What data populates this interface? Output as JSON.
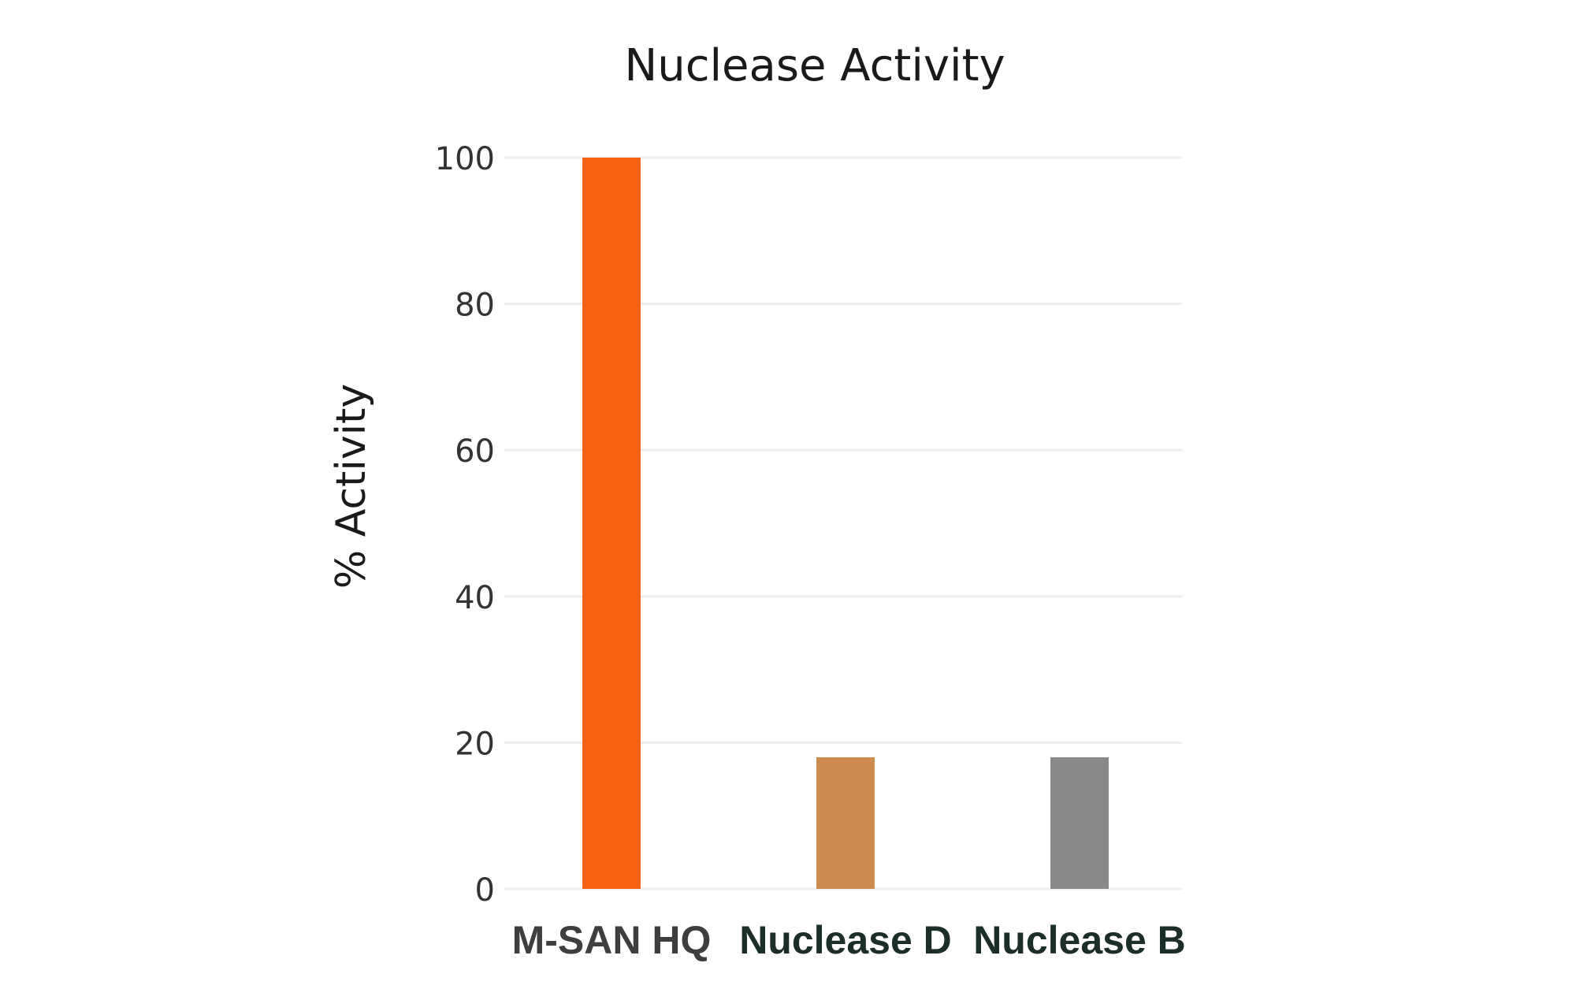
{
  "chart_data": {
    "type": "bar",
    "title": "Nuclease Activity",
    "xlabel": "",
    "ylabel": "% Activity",
    "categories": [
      "M-SAN HQ",
      "Nuclease D",
      "Nuclease B"
    ],
    "values": [
      100,
      18,
      18
    ],
    "ylim": [
      0,
      100
    ],
    "yticks": [
      "0",
      "20",
      "40",
      "60",
      "80",
      "100"
    ],
    "grid": true,
    "bar_colors": [
      "#f96414",
      "#cd8b4f",
      "#8a898a"
    ],
    "xtick_colors": [
      "#3e3e3e",
      "#1c2e2a",
      "#1c2e2a"
    ]
  }
}
